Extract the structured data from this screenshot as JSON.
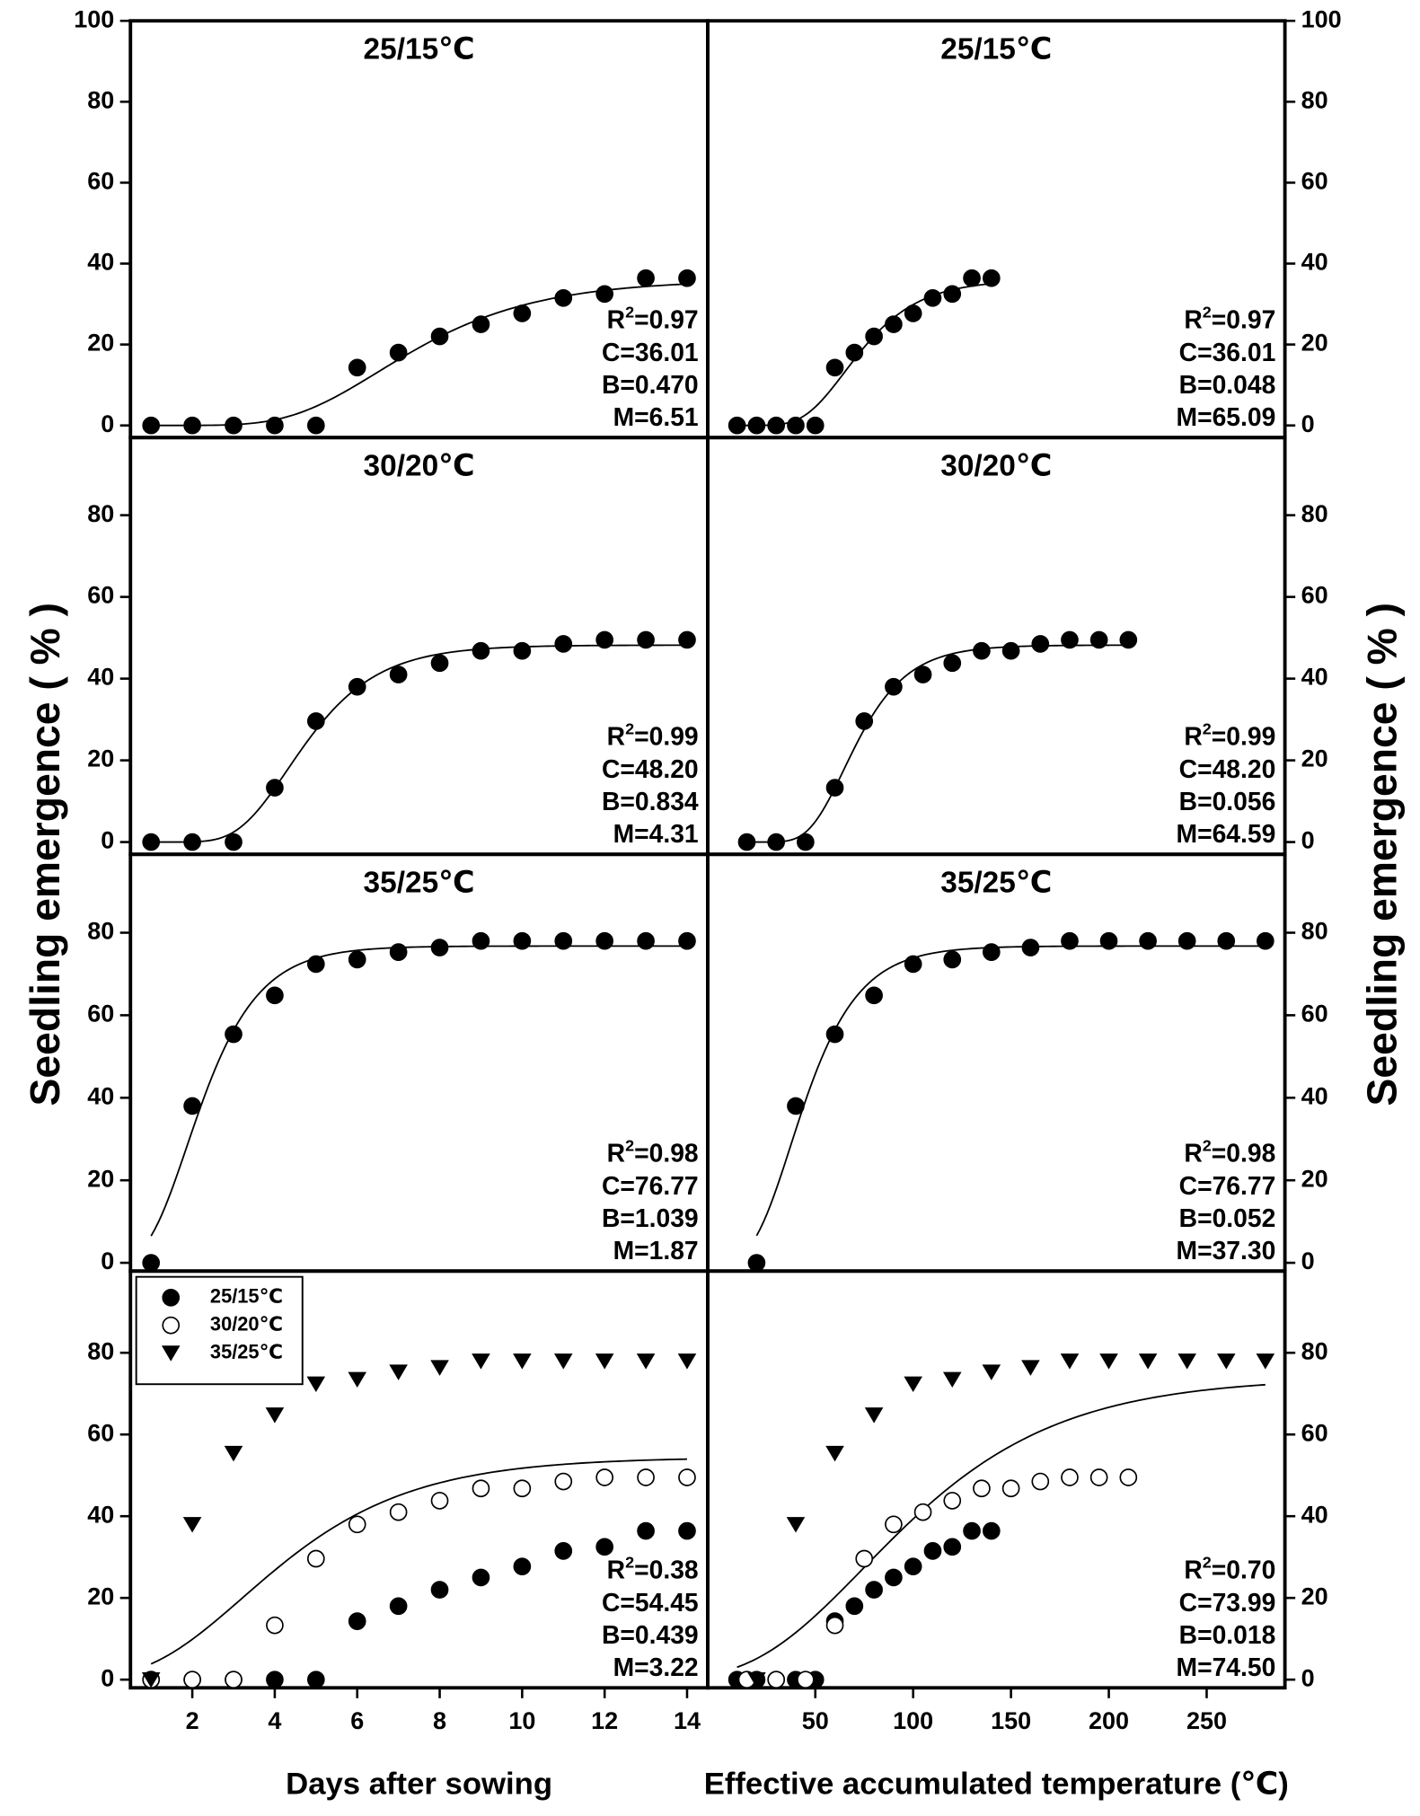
{
  "ylabels": [
    "Seedling emergence ( % )",
    "Seedling emergence ( % )"
  ],
  "chart_data": [
    {
      "type": "scatter",
      "title": "25/15℃",
      "xlim": [
        0.5,
        14.5
      ],
      "ylim": [
        -3,
        100
      ],
      "yticks": [
        0,
        20,
        40,
        60,
        80,
        100
      ],
      "fit_model": "gompertz",
      "fit": {
        "r2": 0.97,
        "C": 36.01,
        "B": 0.47,
        "M": 6.51
      },
      "fit_labels": [
        "R2=0.97",
        "C=36.01",
        "B=0.470",
        "M=6.51"
      ],
      "series": [
        {
          "marker": "filled-circle",
          "color": "#000000",
          "x": [
            1,
            2,
            3,
            4,
            5,
            6,
            7,
            8,
            9,
            10,
            11,
            12,
            13,
            14
          ],
          "values": [
            0,
            0,
            0,
            0,
            0,
            14.3,
            18,
            22,
            25,
            27.7,
            31.5,
            32.5,
            36.4,
            36.4
          ]
        }
      ]
    },
    {
      "type": "scatter",
      "title": "25/15℃",
      "xlim": [
        -5,
        290
      ],
      "ylim": [
        -3,
        100
      ],
      "yticks": [
        0,
        20,
        40,
        60,
        80,
        100
      ],
      "fit_model": "gompertz",
      "fit": {
        "r2": 0.97,
        "C": 36.01,
        "B": 0.048,
        "M": 65.09
      },
      "fit_labels": [
        "R2=0.97",
        "C=36.01",
        "B=0.048",
        "M=65.09"
      ],
      "series": [
        {
          "marker": "filled-circle",
          "color": "#000000",
          "x": [
            10,
            20,
            30,
            40,
            50,
            60,
            70,
            80,
            90,
            100,
            110,
            120,
            130,
            140
          ],
          "values": [
            0,
            0,
            0,
            0,
            0,
            14.3,
            18,
            22,
            25,
            27.7,
            31.5,
            32.5,
            36.4,
            36.4
          ]
        }
      ]
    },
    {
      "type": "scatter",
      "title": "30/20℃",
      "xlim": [
        0.5,
        14.5
      ],
      "ylim": [
        -3,
        99
      ],
      "yticks": [
        0,
        20,
        40,
        60,
        80
      ],
      "fit_model": "gompertz",
      "fit": {
        "r2": 0.99,
        "C": 48.2,
        "B": 0.834,
        "M": 4.31
      },
      "fit_labels": [
        "R2=0.99",
        "C=48.20",
        "B=0.834",
        "M=4.31"
      ],
      "series": [
        {
          "marker": "filled-circle",
          "color": "#000000",
          "x": [
            1,
            2,
            3,
            4,
            5,
            6,
            7,
            8,
            9,
            10,
            11,
            12,
            13,
            14
          ],
          "values": [
            0,
            0,
            0,
            13.3,
            29.6,
            38,
            41,
            43.8,
            46.8,
            46.8,
            48.5,
            49.5,
            49.5,
            49.5
          ]
        }
      ]
    },
    {
      "type": "scatter",
      "title": "30/20℃",
      "xlim": [
        -5,
        290
      ],
      "ylim": [
        -3,
        99
      ],
      "yticks": [
        0,
        20,
        40,
        60,
        80
      ],
      "fit_model": "gompertz",
      "fit": {
        "r2": 0.99,
        "C": 48.2,
        "B": 0.056,
        "M": 64.59
      },
      "fit_labels": [
        "R2=0.99",
        "C=48.20",
        "B=0.056",
        "M=64.59"
      ],
      "series": [
        {
          "marker": "filled-circle",
          "color": "#000000",
          "x": [
            15,
            30,
            45,
            60,
            75,
            90,
            105,
            120,
            135,
            150,
            165,
            180,
            195,
            210
          ],
          "values": [
            0,
            0,
            0,
            13.3,
            29.6,
            38,
            41,
            43.8,
            46.8,
            46.8,
            48.5,
            49.5,
            49.5,
            49.5
          ]
        }
      ]
    },
    {
      "type": "scatter",
      "title": "35/25℃",
      "xlim": [
        0.5,
        14.5
      ],
      "ylim": [
        -2,
        99
      ],
      "yticks": [
        0,
        20,
        40,
        60,
        80
      ],
      "fit_model": "gompertz",
      "fit": {
        "r2": 0.98,
        "C": 76.77,
        "B": 1.039,
        "M": 1.87
      },
      "fit_labels": [
        "R2=0.98",
        "C=76.77",
        "B=1.039",
        "M=1.87"
      ],
      "series": [
        {
          "marker": "filled-circle",
          "color": "#000000",
          "x": [
            1,
            2,
            3,
            4,
            5,
            6,
            7,
            8,
            9,
            10,
            11,
            12,
            13,
            14
          ],
          "values": [
            0,
            38,
            55.4,
            64.8,
            72.4,
            73.5,
            75.3,
            76.4,
            78,
            78,
            78,
            78,
            78,
            78
          ]
        }
      ]
    },
    {
      "type": "scatter",
      "title": "35/25℃",
      "xlim": [
        -5,
        290
      ],
      "ylim": [
        -2,
        99
      ],
      "yticks": [
        0,
        20,
        40,
        60,
        80
      ],
      "fit_model": "gompertz",
      "fit": {
        "r2": 0.98,
        "C": 76.77,
        "B": 0.052,
        "M": 37.3
      },
      "fit_labels": [
        "R2=0.98",
        "C=76.77",
        "B=0.052",
        "M=37.30"
      ],
      "series": [
        {
          "marker": "filled-circle",
          "color": "#000000",
          "x": [
            20,
            40,
            60,
            80,
            100,
            120,
            140,
            160,
            180,
            200,
            220,
            240,
            260,
            280
          ],
          "values": [
            0,
            38,
            55.4,
            64.8,
            72.4,
            73.5,
            75.3,
            76.4,
            78,
            78,
            78,
            78,
            78,
            78
          ]
        }
      ]
    },
    {
      "type": "scatter",
      "xlabel": "Days after sowing",
      "xlim": [
        0.5,
        14.5
      ],
      "ylim": [
        -2,
        100
      ],
      "xticks": [
        2,
        4,
        6,
        8,
        10,
        12,
        14
      ],
      "yticks": [
        0,
        20,
        40,
        60,
        80
      ],
      "legend": "upper left",
      "fit_model": "gompertz",
      "fit": {
        "r2": 0.38,
        "C": 54.45,
        "B": 0.439,
        "M": 3.22
      },
      "fit_labels": [
        "R2=0.38",
        "C=54.45",
        "B=0.439",
        "M=3.22"
      ],
      "series": [
        {
          "name": "25/15℃",
          "marker": "filled-circle",
          "color": "#000000",
          "x": [
            1,
            2,
            3,
            4,
            5,
            6,
            7,
            8,
            9,
            10,
            11,
            12,
            13,
            14
          ],
          "values": [
            0,
            0,
            0,
            0,
            0,
            14.3,
            18,
            22,
            25,
            27.7,
            31.5,
            32.5,
            36.4,
            36.4
          ]
        },
        {
          "name": "30/20℃",
          "marker": "open-circle",
          "color": "#000000",
          "x": [
            1,
            2,
            3,
            4,
            5,
            6,
            7,
            8,
            9,
            10,
            11,
            12,
            13,
            14
          ],
          "values": [
            0,
            0,
            0,
            13.3,
            29.6,
            38,
            41,
            43.8,
            46.8,
            46.8,
            48.5,
            49.5,
            49.5,
            49.5
          ]
        },
        {
          "name": "35/25℃",
          "marker": "triangle-down",
          "color": "#000000",
          "x": [
            1,
            2,
            3,
            4,
            5,
            6,
            7,
            8,
            9,
            10,
            11,
            12,
            13,
            14
          ],
          "values": [
            0,
            38,
            55.4,
            64.8,
            72.4,
            73.5,
            75.3,
            76.4,
            78,
            78,
            78,
            78,
            78,
            78
          ]
        }
      ]
    },
    {
      "type": "scatter",
      "xlabel": "Effective accumulated temperature (℃)",
      "xlim": [
        -5,
        290
      ],
      "ylim": [
        -2,
        100
      ],
      "xticks": [
        50,
        100,
        150,
        200,
        250
      ],
      "yticks": [
        0,
        20,
        40,
        60,
        80
      ],
      "fit_model": "gompertz",
      "fit": {
        "r2": 0.7,
        "C": 73.99,
        "B": 0.018,
        "M": 74.5
      },
      "fit_labels": [
        "R2=0.70",
        "C=73.99",
        "B=0.018",
        "M=74.50"
      ],
      "series": [
        {
          "marker": "filled-circle",
          "color": "#000000",
          "x": [
            10,
            20,
            30,
            40,
            50,
            60,
            70,
            80,
            90,
            100,
            110,
            120,
            130,
            140
          ],
          "values": [
            0,
            0,
            0,
            0,
            0,
            14.3,
            18,
            22,
            25,
            27.7,
            31.5,
            32.5,
            36.4,
            36.4
          ]
        },
        {
          "marker": "open-circle",
          "color": "#000000",
          "x": [
            15,
            30,
            45,
            60,
            75,
            90,
            105,
            120,
            135,
            150,
            165,
            180,
            195,
            210
          ],
          "values": [
            0,
            0,
            0,
            13.3,
            29.6,
            38,
            41,
            43.8,
            46.8,
            46.8,
            48.5,
            49.5,
            49.5,
            49.5
          ]
        },
        {
          "marker": "triangle-down",
          "color": "#000000",
          "x": [
            20,
            40,
            60,
            80,
            100,
            120,
            140,
            160,
            180,
            200,
            220,
            240,
            260,
            280
          ],
          "values": [
            0,
            38,
            55.4,
            64.8,
            72.4,
            73.5,
            75.3,
            76.4,
            78,
            78,
            78,
            78,
            78,
            78
          ]
        }
      ]
    }
  ]
}
